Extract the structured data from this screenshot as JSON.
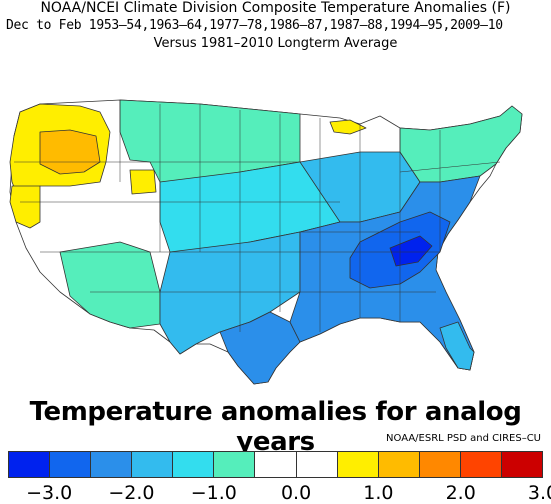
{
  "title_line1": "NOAA/NCEI Climate Division Composite Temperature Anomalies (F)",
  "title_line2": "Dec to Feb  1953–54,1963–64,1977–78,1986–87,1987–88,1994–95,2009–10",
  "title_line3": "Versus 1981–2010 Longterm Average",
  "caption": "Temperature anomalies for analog years",
  "credit": "NOAA/ESRL PSD and CIRES–CU",
  "colorbar": {
    "colors": [
      "#0022ee",
      "#1166ee",
      "#2b8fea",
      "#33bbee",
      "#33ddee",
      "#55eebb",
      "#ffffff",
      "#ffffff",
      "#ffee00",
      "#ffbb00",
      "#ff8800",
      "#ff4400",
      "#cc0000"
    ],
    "ticks": [
      "−3.0",
      "−2.0",
      "−1.0",
      "0.0",
      "1.0",
      "2.0",
      "3.0"
    ]
  },
  "map_colors": {
    "white": "#ffffff",
    "yellow": "#ffee00",
    "orange": "#ffbb00",
    "teal": "#55eebb",
    "cyan": "#33ddee",
    "lightblue": "#33bbee",
    "medblue": "#2b8fea",
    "blue": "#1166ee",
    "darkblue": "#0022ee"
  }
}
